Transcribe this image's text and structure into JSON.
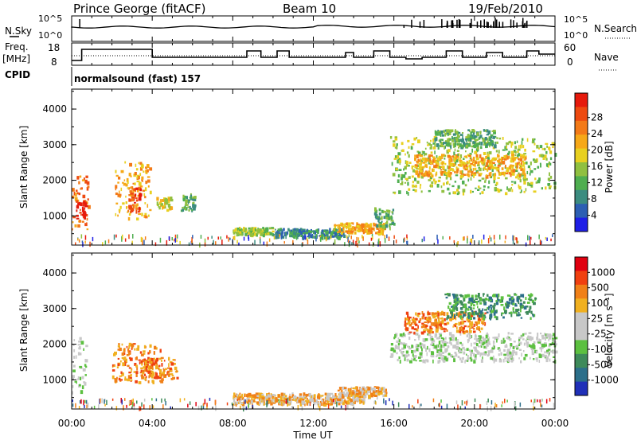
{
  "header": {
    "station": "Prince George (fitACF)",
    "beam": "Beam 10",
    "date": "19/Feb/2010"
  },
  "sky_panel": {
    "left_label": "N.Sky",
    "left_ticks": [
      "10^5",
      "10^0"
    ],
    "right_ticks": [
      "10^5",
      "10^0"
    ],
    "right_label": "N.Search"
  },
  "freq_panel": {
    "left_label_line1": "Freq.",
    "left_label_line2": "[MHz]",
    "left_ticks": [
      "18",
      "8"
    ],
    "right_ticks": [
      "60",
      "0"
    ],
    "right_label": "Nave"
  },
  "cpid": {
    "label": "CPID",
    "value": "normalsound (fast) 157"
  },
  "chart_data": [
    {
      "type": "heatmap",
      "name": "power",
      "ylabel": "Slant Range [km]",
      "yticks": [
        "1000",
        "2000",
        "3000",
        "4000"
      ],
      "ylim": [
        180,
        4560
      ],
      "colorbar": {
        "label": "Power [dB]",
        "ticks": [
          "4",
          "8",
          "12",
          "16",
          "20",
          "24",
          "28"
        ],
        "colors": [
          "#1f1fe6",
          "#2d5fb3",
          "#3c8c80",
          "#4fae50",
          "#90c040",
          "#e8d020",
          "#f6a818",
          "#f37a18",
          "#ee4a10",
          "#e61a0c"
        ]
      },
      "regions": [
        {
          "t": [
            0.0,
            0.8
          ],
          "r": [
            600,
            2100
          ],
          "c": 7
        },
        {
          "t": [
            0.2,
            0.7
          ],
          "r": [
            900,
            1400
          ],
          "c": 9
        },
        {
          "t": [
            2.1,
            3.9
          ],
          "r": [
            900,
            2500
          ],
          "c": 6
        },
        {
          "t": [
            2.8,
            3.4
          ],
          "r": [
            1100,
            1800
          ],
          "c": 8
        },
        {
          "t": [
            4.2,
            4.9
          ],
          "r": [
            1150,
            1500
          ],
          "c": 5
        },
        {
          "t": [
            5.4,
            6.1
          ],
          "r": [
            1100,
            1600
          ],
          "c": 3
        },
        {
          "t": [
            8.0,
            10.0
          ],
          "r": [
            450,
            650
          ],
          "c": 4
        },
        {
          "t": [
            10.0,
            13.5
          ],
          "r": [
            380,
            620
          ],
          "c": 2
        },
        {
          "t": [
            13.0,
            15.5
          ],
          "r": [
            500,
            780
          ],
          "c": 6
        },
        {
          "t": [
            15.0,
            16.0
          ],
          "r": [
            650,
            1200
          ],
          "c": 3
        },
        {
          "t": [
            15.8,
            24.0
          ],
          "r": [
            1600,
            3200
          ],
          "c": 4
        },
        {
          "t": [
            17.0,
            22.5
          ],
          "r": [
            2100,
            2700
          ],
          "c": 6
        },
        {
          "t": [
            18.0,
            21.0
          ],
          "r": [
            2900,
            3400
          ],
          "c": 3
        }
      ]
    },
    {
      "type": "heatmap",
      "name": "velocity",
      "ylabel": "Slant Range [km]",
      "yticks": [
        "1000",
        "2000",
        "3000",
        "4000"
      ],
      "ylim": [
        180,
        4560
      ],
      "colorbar": {
        "label": "Velocity [m s⁻¹]",
        "ticks": [
          "1000",
          "500",
          "100",
          "25",
          "-25",
          "-100",
          "-500",
          "-1000"
        ],
        "colors": [
          "#2030b8",
          "#2c6f8a",
          "#3e8a5a",
          "#5cc040",
          "#c8c8c8",
          "#c8c8c8",
          "#f0b020",
          "#f08018",
          "#f04010",
          "#e00010"
        ]
      },
      "regions": [
        {
          "t": [
            0.0,
            0.7
          ],
          "r": [
            600,
            2200
          ],
          "c": 4
        },
        {
          "t": [
            2.0,
            4.4
          ],
          "r": [
            900,
            2000
          ],
          "c": 7
        },
        {
          "t": [
            3.4,
            5.2
          ],
          "r": [
            1000,
            1600
          ],
          "c": 7
        },
        {
          "t": [
            8.0,
            14.5
          ],
          "r": [
            300,
            600
          ],
          "c": 6
        },
        {
          "t": [
            13.2,
            15.6
          ],
          "r": [
            500,
            780
          ],
          "c": 6
        },
        {
          "t": [
            15.8,
            24.0
          ],
          "r": [
            1500,
            2300
          ],
          "c": 4
        },
        {
          "t": [
            16.5,
            20.5
          ],
          "r": [
            2300,
            2900
          ],
          "c": 7
        },
        {
          "t": [
            18.5,
            23.0
          ],
          "r": [
            2700,
            3400
          ],
          "c": 2
        }
      ]
    }
  ],
  "xaxis": {
    "ticks": [
      "00:00",
      "04:00",
      "08:00",
      "12:00",
      "16:00",
      "20:00",
      "00:00"
    ],
    "label": "Time UT",
    "range_hours": [
      0,
      24
    ]
  }
}
